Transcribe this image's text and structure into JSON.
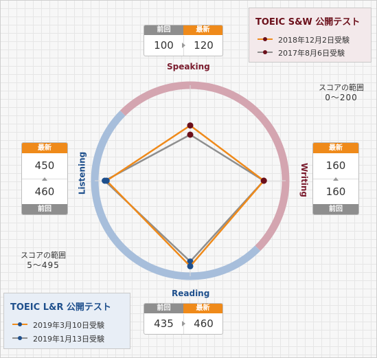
{
  "sw_legend": {
    "title": "TOEIC S&W 公開テスト",
    "items": [
      {
        "label": "2018年12月2日受験",
        "color": "#ef8a1a",
        "marker": "#6b0f1a"
      },
      {
        "label": "2017年8月6日受験",
        "color": "#8e8e8e",
        "marker": "#6b0f1a"
      }
    ]
  },
  "lr_legend": {
    "title": "TOEIC L&R 公開テスト",
    "items": [
      {
        "label": "2019年3月10日受験",
        "color": "#ef8a1a",
        "marker": "#1e4f8c"
      },
      {
        "label": "2019年1月13日受験",
        "color": "#8e8e8e",
        "marker": "#1e4f8c"
      }
    ]
  },
  "sw_range": {
    "label": "スコアの範囲",
    "value": "0～200"
  },
  "lr_range": {
    "label": "スコアの範囲",
    "value": "5～495"
  },
  "header_prev": "前回",
  "header_last": "最新",
  "axes": {
    "speaking": "Speaking",
    "writing": "Writing",
    "reading": "Reading",
    "listening": "Listening"
  },
  "scores": {
    "speaking": {
      "prev": "100",
      "last": "120"
    },
    "writing": {
      "prev": "160",
      "last": "160"
    },
    "reading": {
      "prev": "435",
      "last": "460"
    },
    "listening": {
      "prev": "460",
      "last": "450"
    }
  },
  "colors": {
    "latest": "#ef8a1a",
    "previous": "#8e8e8e",
    "sw_ring": "#d4a5b0",
    "lr_ring": "#a7bedb",
    "sw_text": "#7a1c2e",
    "lr_text": "#1e4f8c"
  },
  "chart_data": {
    "type": "radar",
    "axes": [
      "Speaking",
      "Writing",
      "Reading",
      "Listening"
    ],
    "max": [
      200,
      200,
      495,
      495
    ],
    "min": [
      0,
      0,
      5,
      5
    ],
    "series": [
      {
        "name": "2018年12月2日受験 / 2019年3月10日受験",
        "values": [
          120,
          160,
          460,
          450
        ]
      },
      {
        "name": "2017年8月6日受験 / 2019年1月13日受験",
        "values": [
          100,
          160,
          435,
          460
        ]
      }
    ]
  }
}
